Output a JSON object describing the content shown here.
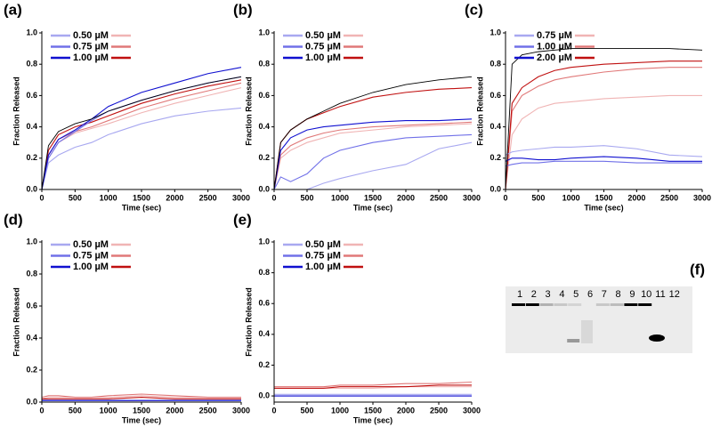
{
  "chart_data": [
    {
      "type": "line",
      "label": "(a)",
      "x_label": "Time (sec)",
      "y_label": "Fraction Released",
      "x": [
        0,
        100,
        250,
        500,
        750,
        1000,
        1500,
        2000,
        2500,
        3000
      ],
      "xlim": [
        0,
        3000
      ],
      "xticks": [
        0,
        500,
        1000,
        1500,
        2000,
        2500,
        3000
      ],
      "ylim": [
        0,
        1
      ],
      "yticks": [
        {
          "value": 0,
          "label": "0.0"
        },
        0.2,
        0.4,
        0.6,
        0.8,
        {
          "value": 1,
          "label": "1.0"
        }
      ],
      "series": [
        {
          "name": "0.50 µM",
          "color": "#a8a8f0",
          "values": [
            0,
            0.17,
            0.22,
            0.27,
            0.3,
            0.35,
            0.42,
            0.47,
            0.5,
            0.52
          ],
          "pair": {
            "color": "#f0b4b4",
            "values": [
              0,
              0.2,
              0.3,
              0.36,
              0.39,
              0.42,
              0.49,
              0.55,
              0.6,
              0.65
            ]
          }
        },
        {
          "name": "0.75 µM",
          "color": "#7070e8",
          "values": [
            0,
            0.2,
            0.3,
            0.37,
            0.44,
            0.5,
            0.57,
            0.63,
            0.68,
            0.72
          ],
          "pair": {
            "color": "#e07878",
            "values": [
              0,
              0.22,
              0.32,
              0.37,
              0.4,
              0.44,
              0.52,
              0.58,
              0.63,
              0.68
            ]
          }
        },
        {
          "name": "1.00 µM",
          "color": "#1010d0",
          "values": [
            0,
            0.22,
            0.32,
            0.38,
            0.45,
            0.53,
            0.62,
            0.68,
            0.74,
            0.78
          ],
          "pair": {
            "color": "#c01010",
            "values": [
              0,
              0.25,
              0.35,
              0.4,
              0.43,
              0.47,
              0.55,
              0.61,
              0.66,
              0.7
            ]
          }
        },
        {
          "color": "#000000",
          "values": [
            0,
            0.28,
            0.37,
            0.42,
            0.45,
            0.5,
            0.57,
            0.63,
            0.68,
            0.72
          ]
        }
      ]
    },
    {
      "type": "line",
      "label": "(b)",
      "x_label": "Time (sec)",
      "y_label": "Fraction Released",
      "x": [
        0,
        100,
        250,
        500,
        750,
        1000,
        1500,
        2000,
        2500,
        3000
      ],
      "xlim": [
        0,
        3000
      ],
      "xticks": [
        0,
        500,
        1000,
        1500,
        2000,
        2500,
        3000
      ],
      "ylim": [
        0,
        1
      ],
      "yticks": [
        {
          "value": 0,
          "label": "0.0"
        },
        0.2,
        0.4,
        0.6,
        0.8,
        {
          "value": 1,
          "label": "1.0"
        }
      ],
      "series": [
        {
          "name": "0.50 µM",
          "color": "#a8a8f0",
          "values": [
            null,
            null,
            null,
            0.0,
            0.04,
            0.07,
            0.12,
            0.16,
            0.26,
            0.3
          ],
          "pair": {
            "color": "#f0b4b4",
            "values": [
              0,
              0.2,
              0.25,
              0.3,
              0.33,
              0.36,
              0.38,
              0.4,
              0.41,
              0.42
            ]
          }
        },
        {
          "name": "0.75 µM",
          "color": "#7070e8",
          "values": [
            0,
            0.08,
            0.05,
            0.1,
            0.2,
            0.25,
            0.3,
            0.33,
            0.34,
            0.35
          ],
          "pair": {
            "color": "#e07878",
            "values": [
              0,
              0.22,
              0.28,
              0.33,
              0.36,
              0.38,
              0.4,
              0.41,
              0.42,
              0.43
            ]
          }
        },
        {
          "name": "1.00 µM",
          "color": "#1010d0",
          "values": [
            0,
            0.25,
            0.33,
            0.38,
            0.4,
            0.41,
            0.43,
            0.44,
            0.44,
            0.45
          ],
          "pair": {
            "color": "#c01010",
            "values": [
              0,
              0.3,
              0.38,
              0.45,
              0.49,
              0.53,
              0.59,
              0.62,
              0.64,
              0.65
            ]
          }
        },
        {
          "color": "#000000",
          "values": [
            0,
            0.3,
            0.38,
            0.45,
            0.5,
            0.55,
            0.62,
            0.67,
            0.7,
            0.72
          ]
        }
      ]
    },
    {
      "type": "line",
      "label": "(c)",
      "x_label": "Time (sec)",
      "y_label": "Fraction Released",
      "x": [
        0,
        100,
        250,
        500,
        750,
        1000,
        1500,
        2000,
        2500,
        3000
      ],
      "xlim": [
        0,
        3000
      ],
      "xticks": [
        0,
        500,
        1000,
        1500,
        2000,
        2500,
        3000
      ],
      "ylim": [
        0,
        1
      ],
      "yticks": [
        {
          "value": 0,
          "label": "0.0"
        },
        0.2,
        0.4,
        0.6,
        0.8,
        {
          "value": 1,
          "label": "1.0"
        }
      ],
      "series": [
        {
          "name": "0.75 µM",
          "color": "#a8a8f0",
          "values": [
            0.22,
            0.24,
            0.25,
            0.26,
            0.27,
            0.27,
            0.28,
            0.26,
            0.22,
            0.21
          ],
          "pair": {
            "color": "#f0b4b4",
            "values": [
              0,
              0.35,
              0.45,
              0.52,
              0.55,
              0.56,
              0.58,
              0.59,
              0.6,
              0.6
            ]
          }
        },
        {
          "name": "1.00 µM",
          "color": "#7070e8",
          "values": [
            0.15,
            0.16,
            0.17,
            0.17,
            0.18,
            0.18,
            0.18,
            0.17,
            0.17,
            0.17
          ],
          "pair": {
            "color": "#e07878",
            "values": [
              0,
              0.5,
              0.6,
              0.66,
              0.7,
              0.72,
              0.75,
              0.77,
              0.78,
              0.78
            ]
          }
        },
        {
          "name": "2.00 µM",
          "color": "#1010d0",
          "values": [
            0.18,
            0.2,
            0.2,
            0.19,
            0.19,
            0.2,
            0.21,
            0.2,
            0.18,
            0.18
          ],
          "pair": {
            "color": "#c01010",
            "values": [
              0,
              0.55,
              0.65,
              0.72,
              0.76,
              0.78,
              0.8,
              0.81,
              0.82,
              0.82
            ]
          }
        },
        {
          "color": "#000000",
          "values": [
            0,
            0.8,
            0.86,
            0.88,
            0.89,
            0.9,
            0.9,
            0.9,
            0.9,
            0.89
          ]
        }
      ]
    },
    {
      "type": "line",
      "label": "(d)",
      "x_label": "Time (sec)",
      "y_label": "Fraction Released",
      "x": [
        0,
        100,
        250,
        500,
        750,
        1000,
        1500,
        2000,
        2500,
        3000
      ],
      "xlim": [
        0,
        3000
      ],
      "xticks": [
        0,
        500,
        1000,
        1500,
        2000,
        2500,
        3000
      ],
      "ylim": [
        0,
        1
      ],
      "yticks": [
        {
          "value": 0,
          "label": "0.0"
        },
        0.2,
        0.4,
        0.6,
        0.8,
        {
          "value": 1,
          "label": "1.0"
        }
      ],
      "series": [
        {
          "name": "0.50 µM",
          "color": "#a8a8f0",
          "values": [
            0.01,
            0.01,
            0.01,
            0.01,
            0.01,
            0.01,
            0.01,
            0.01,
            0.01,
            0.01
          ],
          "pair": {
            "color": "#f0b4b4",
            "values": [
              0.02,
              0.03,
              0.03,
              0.03,
              0.03,
              0.03,
              0.04,
              0.03,
              0.03,
              0.03
            ]
          }
        },
        {
          "name": "0.75 µM",
          "color": "#7070e8",
          "values": [
            0.01,
            0.01,
            0.01,
            0.01,
            0.01,
            0.01,
            0.01,
            0.01,
            0.01,
            0.01
          ],
          "pair": {
            "color": "#e07878",
            "values": [
              0.03,
              0.04,
              0.04,
              0.03,
              0.03,
              0.04,
              0.05,
              0.04,
              0.03,
              0.03
            ]
          }
        },
        {
          "name": "1.00 µM",
          "color": "#1010d0",
          "values": [
            0.01,
            0.01,
            0.01,
            0.01,
            0.01,
            0.01,
            0.01,
            0.01,
            0.01,
            0.01
          ],
          "pair": {
            "color": "#c01010",
            "values": [
              0.02,
              0.02,
              0.02,
              0.02,
              0.02,
              0.02,
              0.03,
              0.02,
              0.02,
              0.02
            ]
          }
        }
      ]
    },
    {
      "type": "line",
      "label": "(e)",
      "x_label": "Time (sec)",
      "y_label": "Fraction Released",
      "x": [
        0,
        100,
        250,
        500,
        750,
        1000,
        1500,
        2000,
        2500,
        3000
      ],
      "xlim": [
        0,
        3000
      ],
      "xticks": [
        0,
        500,
        1000,
        1500,
        2000,
        2500,
        3000
      ],
      "ylim": [
        -0.04,
        1
      ],
      "yticks": [
        {
          "value": 0,
          "label": "0.0"
        },
        0.2,
        0.4,
        0.6,
        0.8,
        {
          "value": 1,
          "label": "1.0"
        }
      ],
      "series": [
        {
          "name": "0.50 µM",
          "color": "#a8a8f0",
          "values": [
            0.01,
            0.01,
            0.01,
            0.01,
            0.01,
            0.01,
            0.01,
            0.01,
            0.01,
            0.01
          ],
          "pair": {
            "color": "#f0b4b4",
            "values": [
              0.05,
              0.05,
              0.05,
              0.05,
              0.05,
              0.05,
              0.05,
              0.06,
              0.06,
              0.06
            ]
          }
        },
        {
          "name": "0.75 µM",
          "color": "#7070e8",
          "values": [
            0.0,
            0.0,
            0.0,
            0.0,
            0.0,
            0.0,
            0.0,
            0.0,
            0.0,
            0.0
          ],
          "pair": {
            "color": "#e07878",
            "values": [
              0.06,
              0.06,
              0.06,
              0.06,
              0.06,
              0.07,
              0.07,
              0.08,
              0.08,
              0.09
            ]
          }
        },
        {
          "name": "1.00 µM",
          "color": "#1010d0",
          "values": [
            0.0,
            0.0,
            0.0,
            0.0,
            0.0,
            0.0,
            0.0,
            0.0,
            0.0,
            0.0
          ],
          "pair": {
            "color": "#c01010",
            "values": [
              0.05,
              0.05,
              0.05,
              0.05,
              0.05,
              0.06,
              0.06,
              0.06,
              0.07,
              0.07
            ]
          }
        }
      ]
    }
  ],
  "gel": {
    "label": "(f)",
    "lanes": [
      "1",
      "2",
      "3",
      "4",
      "5",
      "6",
      "7",
      "8",
      "9",
      "10",
      "11",
      "12"
    ]
  }
}
